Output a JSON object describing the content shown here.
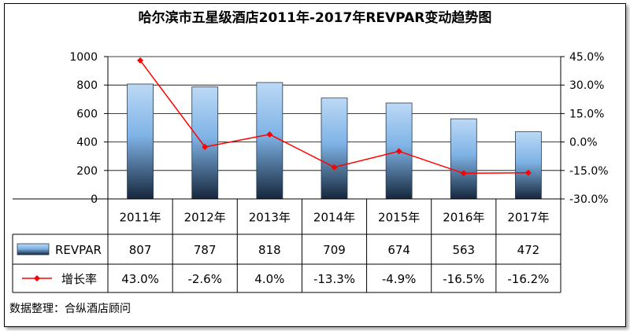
{
  "title": "哈尔滨市五星级酒店2011年-2017年REVPAR变动趋势图",
  "source_note": "数据整理：合纵酒店顾问",
  "colors": {
    "bar_top": "#bcd9f5",
    "bar_mid": "#7fb3e6",
    "bar_bottom": "#16273c",
    "line": "#ff0000",
    "axis": "#000000",
    "grid": "#000000"
  },
  "chart_data": {
    "type": "bar+line",
    "categories": [
      "2011年",
      "2012年",
      "2013年",
      "2014年",
      "2015年",
      "2016年",
      "2017年"
    ],
    "series": [
      {
        "name": "REVPAR",
        "type": "bar",
        "axis": "left",
        "values": [
          807,
          787,
          818,
          709,
          674,
          563,
          472
        ],
        "labels": [
          "807",
          "787",
          "818",
          "709",
          "674",
          "563",
          "472"
        ]
      },
      {
        "name": "增长率",
        "type": "line",
        "axis": "right",
        "values": [
          43.0,
          -2.6,
          4.0,
          -13.3,
          -4.9,
          -16.5,
          -16.2
        ],
        "labels": [
          "43.0%",
          "-2.6%",
          "4.0%",
          "-13.3%",
          "-4.9%",
          "-16.5%",
          "-16.2%"
        ]
      }
    ],
    "y_left": {
      "min": 0,
      "max": 1000,
      "ticks": [
        "0",
        "200",
        "400",
        "600",
        "800",
        "1000"
      ]
    },
    "y_right": {
      "min": -30,
      "max": 45,
      "ticks": [
        "-30.0%",
        "-15.0%",
        "0.0%",
        "15.0%",
        "30.0%",
        "45.0%"
      ]
    },
    "grid": true,
    "legend": "data-table-below"
  }
}
